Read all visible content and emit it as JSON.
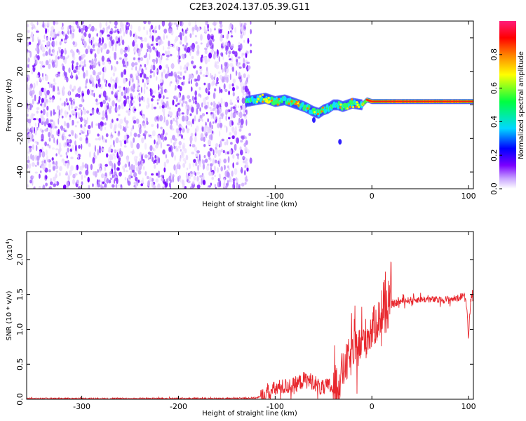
{
  "figure": {
    "title": "C2E3.2024.137.05.39.G11"
  },
  "chart_data": [
    {
      "type": "heatmap",
      "name": "spectrogram",
      "xlabel": "Height of straight line (km)",
      "ylabel": "Frequency (Hz)",
      "xlim": [
        -357,
        105
      ],
      "ylim": [
        -50,
        50
      ],
      "xticks": [
        "-300",
        "-200",
        "-100",
        "0",
        "100"
      ],
      "xtick_values": [
        -300,
        -200,
        -100,
        0,
        100
      ],
      "yticks": [
        "-40",
        "-20",
        "0",
        "20",
        "40"
      ],
      "ytick_values": [
        -40,
        -20,
        0,
        20,
        40
      ],
      "noise_region": {
        "x_from": -357,
        "x_to": -125
      },
      "signal_track": {
        "x": [
          -130,
          -120,
          -110,
          -100,
          -90,
          -80,
          -70,
          -60,
          -55,
          -50,
          -45,
          -40,
          -35,
          -30,
          -20,
          -10,
          -5,
          0,
          20,
          40,
          60,
          80,
          90,
          100,
          105
        ],
        "freq": [
          2,
          3,
          4,
          2,
          3,
          1,
          -1,
          -4,
          -5,
          -3,
          -2,
          0,
          0,
          -1,
          1,
          0,
          3,
          2,
          2,
          2,
          2,
          2,
          2,
          2,
          2
        ]
      },
      "isolated_points": [
        {
          "x": -33,
          "freq": -22
        },
        {
          "x": -60,
          "freq": -9
        }
      ],
      "colorbar": {
        "label": "Normalized spectral amplitude",
        "ticks": [
          "0.0",
          "0.2",
          "0.4",
          "0.6",
          "0.8"
        ],
        "tick_values": [
          0.0,
          0.2,
          0.4,
          0.6,
          0.8
        ],
        "range": [
          0,
          1
        ],
        "colors": [
          "#ffffff",
          "#c9a6ff",
          "#7a00ff",
          "#0000ff",
          "#00d8ff",
          "#00ff40",
          "#ffff00",
          "#ff8000",
          "#ff0000",
          "#ff1c7a"
        ]
      },
      "grid": false
    },
    {
      "type": "line",
      "name": "snr",
      "xlabel": "Height of straight line (km)",
      "ylabel": "SNR (10 * v/v)",
      "scale_label": "(x10",
      "scale_exp": "4",
      "scale_close": ")",
      "xlim": [
        -357,
        105
      ],
      "ylim": [
        0,
        2.4
      ],
      "xticks": [
        "-300",
        "-200",
        "-100",
        "0",
        "100"
      ],
      "xtick_values": [
        -300,
        -200,
        -100,
        0,
        100
      ],
      "yticks": [
        "0.0",
        "0.5",
        "1.0",
        "1.5",
        "2.0"
      ],
      "ytick_values": [
        0.0,
        0.5,
        1.0,
        1.5,
        2.0
      ],
      "line_color": "#e8282e",
      "series": [
        {
          "x": [
            -357,
            -300,
            -250,
            -200,
            -150,
            -120,
            -110,
            -100,
            -90,
            -80,
            -70,
            -60,
            -55,
            -50,
            -45,
            -40,
            -35,
            -30,
            -25,
            -20,
            -15,
            -10,
            -5,
            0,
            10,
            20,
            30,
            40,
            50,
            60,
            70,
            80,
            90,
            95,
            98,
            100,
            102,
            104,
            105
          ],
          "y": [
            0.01,
            0.01,
            0.01,
            0.01,
            0.01,
            0.02,
            0.05,
            0.15,
            0.18,
            0.2,
            0.28,
            0.25,
            0.18,
            0.15,
            0.2,
            0.15,
            0.25,
            0.4,
            0.55,
            0.65,
            0.72,
            0.8,
            0.9,
            1.0,
            1.2,
            1.35,
            1.4,
            1.42,
            1.43,
            1.43,
            1.42,
            1.43,
            1.45,
            1.5,
            1.35,
            0.9,
            1.4,
            1.55,
            1.2
          ]
        }
      ],
      "noise_amplitude": [
        {
          "x_from": -357,
          "x_to": -115,
          "amp": 0.01
        },
        {
          "x_from": -115,
          "x_to": -40,
          "amp": 0.12
        },
        {
          "x_from": -40,
          "x_to": 20,
          "amp": 0.3
        },
        {
          "x_from": 20,
          "x_to": 105,
          "amp": 0.05
        }
      ],
      "grid": false
    }
  ]
}
